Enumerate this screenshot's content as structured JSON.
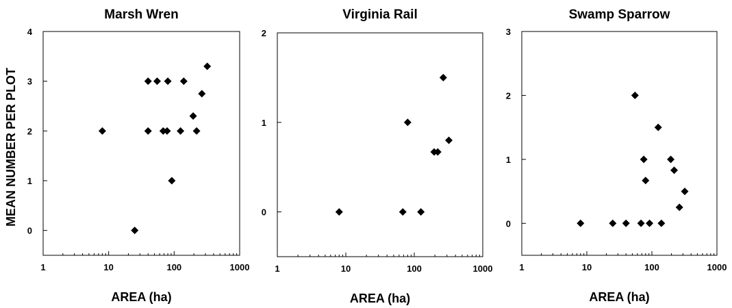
{
  "figure": {
    "ylabel": "MEAN NUMBER PER PLOT"
  },
  "chart_data": [
    {
      "type": "scatter",
      "title": "Marsh  Wren",
      "xlabel": "AREA  (ha)",
      "ylabel": "MEAN NUMBER PER PLOT",
      "xscale": "log",
      "xlim": [
        1,
        1000
      ],
      "ylim": [
        -0.5,
        4
      ],
      "xticks": [
        1,
        10,
        100,
        1000
      ],
      "xtick_labels": [
        "1",
        "10",
        "100",
        "1000"
      ],
      "yticks": [
        0,
        1,
        2,
        3,
        4
      ],
      "ytick_labels": [
        "0",
        "1",
        "2",
        "3",
        "4"
      ],
      "grid": false,
      "marker": "diamond",
      "points": [
        {
          "x": 8,
          "y": 2
        },
        {
          "x": 25,
          "y": 0
        },
        {
          "x": 40,
          "y": 3
        },
        {
          "x": 40,
          "y": 2
        },
        {
          "x": 55,
          "y": 3
        },
        {
          "x": 68,
          "y": 2
        },
        {
          "x": 78,
          "y": 2
        },
        {
          "x": 80,
          "y": 3
        },
        {
          "x": 92,
          "y": 1
        },
        {
          "x": 125,
          "y": 2
        },
        {
          "x": 140,
          "y": 3
        },
        {
          "x": 195,
          "y": 2.3
        },
        {
          "x": 220,
          "y": 2
        },
        {
          "x": 265,
          "y": 2.75
        },
        {
          "x": 320,
          "y": 3.3
        }
      ]
    },
    {
      "type": "scatter",
      "title": "Virginia  Rail",
      "xlabel": "AREA  (ha)",
      "xscale": "log",
      "xlim": [
        1,
        1000
      ],
      "ylim": [
        -0.5,
        2
      ],
      "xticks": [
        1,
        10,
        100,
        1000
      ],
      "xtick_labels": [
        "1",
        "10",
        "100",
        "1000"
      ],
      "yticks": [
        0,
        1,
        2
      ],
      "ytick_labels": [
        "0",
        "1",
        "2"
      ],
      "grid": false,
      "marker": "diamond",
      "points": [
        {
          "x": 8,
          "y": 0
        },
        {
          "x": 68,
          "y": 0
        },
        {
          "x": 80,
          "y": 1
        },
        {
          "x": 125,
          "y": 0
        },
        {
          "x": 195,
          "y": 0.67
        },
        {
          "x": 220,
          "y": 0.67
        },
        {
          "x": 265,
          "y": 1.5
        },
        {
          "x": 320,
          "y": 0.8
        }
      ]
    },
    {
      "type": "scatter",
      "title": "Swamp  Sparrow",
      "xlabel": "AREA  (ha)",
      "xscale": "log",
      "xlim": [
        1,
        1000
      ],
      "ylim": [
        -0.5,
        3
      ],
      "xticks": [
        1,
        10,
        100,
        1000
      ],
      "xtick_labels": [
        "1",
        "10",
        "100",
        "1000"
      ],
      "yticks": [
        0,
        1,
        2,
        3
      ],
      "ytick_labels": [
        "0",
        "1",
        "2",
        "3"
      ],
      "grid": false,
      "marker": "diamond",
      "points": [
        {
          "x": 8,
          "y": 0
        },
        {
          "x": 25,
          "y": 0
        },
        {
          "x": 40,
          "y": 0
        },
        {
          "x": 55,
          "y": 2
        },
        {
          "x": 68,
          "y": 0
        },
        {
          "x": 75,
          "y": 1
        },
        {
          "x": 80,
          "y": 0.67
        },
        {
          "x": 92,
          "y": 0
        },
        {
          "x": 125,
          "y": 1.5
        },
        {
          "x": 140,
          "y": 0
        },
        {
          "x": 195,
          "y": 1
        },
        {
          "x": 220,
          "y": 0.83
        },
        {
          "x": 265,
          "y": 0.25
        },
        {
          "x": 320,
          "y": 0.5
        }
      ]
    }
  ]
}
